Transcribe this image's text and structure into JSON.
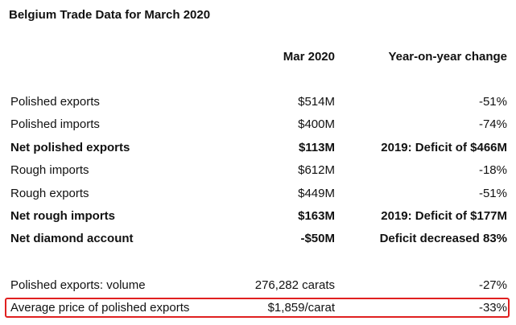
{
  "title": "Belgium Trade Data for March 2020",
  "columns": {
    "period": "Mar 2020",
    "change": "Year-on-year change"
  },
  "rows": [
    {
      "label": "Polished exports",
      "value": "$514M",
      "change": "-51%"
    },
    {
      "label": "Polished imports",
      "value": "$400M",
      "change": "-74%"
    },
    {
      "label": "Net polished exports",
      "value": "$113M",
      "change": "2019: Deficit of $466M"
    },
    {
      "label": "Rough imports",
      "value": "$612M",
      "change": "-18%"
    },
    {
      "label": "Rough exports",
      "value": "$449M",
      "change": "-51%"
    },
    {
      "label": "Net rough imports",
      "value": "$163M",
      "change": "2019: Deficit of $177M"
    },
    {
      "label": "Net diamond account",
      "value": "-$50M",
      "change": "Deficit decreased 83%"
    },
    {
      "label": "Polished exports: volume",
      "value": "276,282 carats",
      "change": "-27%"
    },
    {
      "label": "Average price of polished exports",
      "value": "$1,859/carat",
      "change": "-33%"
    }
  ],
  "highlight_color": "#e02020"
}
